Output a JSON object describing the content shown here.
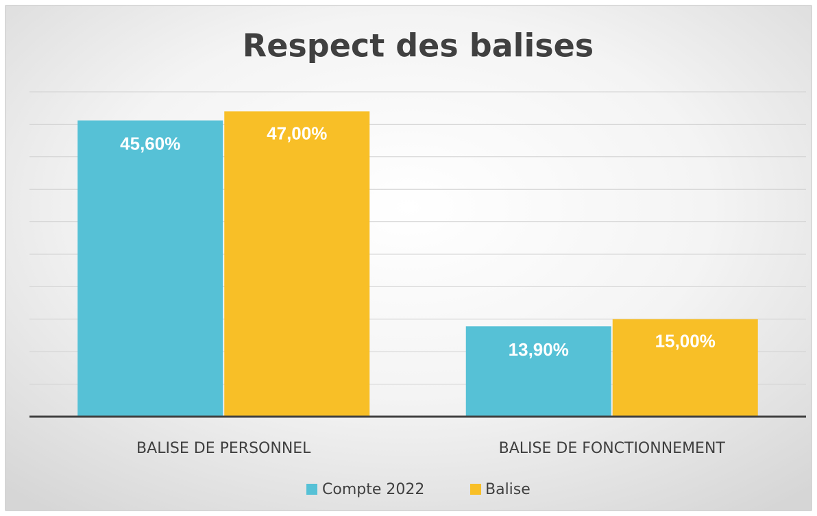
{
  "chart_data": {
    "type": "bar",
    "title": "Respect des balises",
    "categories": [
      "BALISE DE PERSONNEL",
      "BALISE DE FONCTIONNEMENT"
    ],
    "series": [
      {
        "name": "Compte 2022",
        "color": "#56c1d6",
        "values": [
          45.6,
          13.9
        ],
        "value_labels": [
          "45,60%",
          "13,90%"
        ]
      },
      {
        "name": "Balise",
        "color": "#f8bf27",
        "values": [
          47.0,
          15.0
        ],
        "value_labels": [
          "47,00%",
          "15,00%"
        ]
      }
    ],
    "ylim": [
      0,
      50
    ],
    "yticks": [
      0,
      5,
      10,
      15,
      20,
      25,
      30,
      35,
      40,
      45,
      50
    ],
    "grid": true,
    "legend": "bottom"
  }
}
